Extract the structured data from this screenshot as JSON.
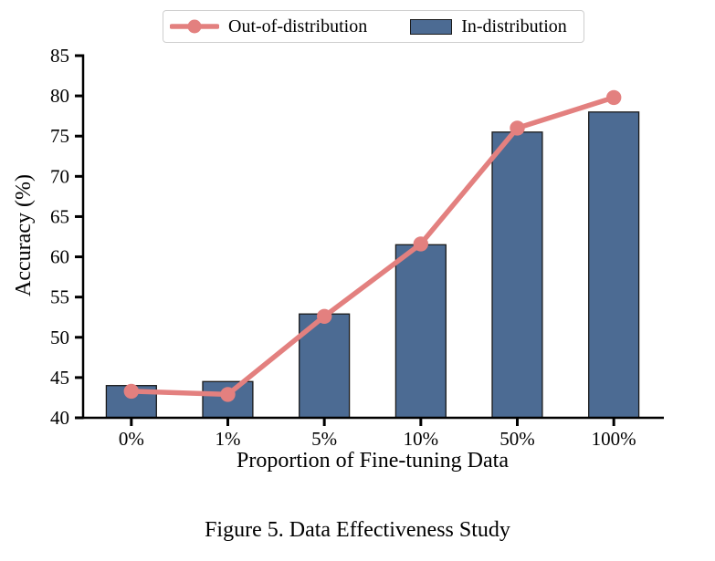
{
  "figure": {
    "caption": "Figure 5. Data Effectiveness Study"
  },
  "chart_data": {
    "type": "bar",
    "combo": "bars with overlaid line",
    "categories": [
      "0%",
      "1%",
      "5%",
      "10%",
      "50%",
      "100%"
    ],
    "series": [
      {
        "name": "Out-of-distribution",
        "type": "line",
        "marker": "circle",
        "color": "#e3807f",
        "values": [
          43.3,
          42.9,
          52.6,
          61.6,
          76.0,
          79.8
        ]
      },
      {
        "name": "In-distribution",
        "type": "bar",
        "color": "#4c6b93",
        "edge_color": "#1a1a1a",
        "values": [
          44.0,
          44.5,
          52.9,
          61.5,
          75.5,
          78.0
        ]
      }
    ],
    "xlabel": "Proportion of Fine-tuning Data",
    "ylabel": "Accuracy (%)",
    "ylim": [
      40,
      85
    ],
    "ytick_step": 5,
    "grid": false,
    "legend_position": "top-center",
    "legend_border_color": "#cfcfcf",
    "axis_color": "#000000"
  }
}
